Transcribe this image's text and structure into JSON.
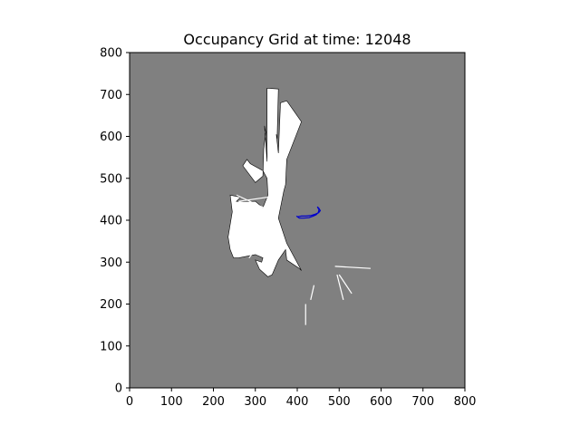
{
  "figure": {
    "title": "Occupancy Grid at time: 12048"
  },
  "chart_data": {
    "type": "heatmap",
    "title": "Occupancy Grid at time: 12048",
    "xlabel": "",
    "ylabel": "",
    "xlim": [
      0,
      800
    ],
    "ylim": [
      0,
      800
    ],
    "x_ticks": [
      0,
      100,
      200,
      300,
      400,
      500,
      600,
      700,
      800
    ],
    "y_ticks": [
      0,
      100,
      200,
      300,
      400,
      500,
      600,
      700,
      800
    ],
    "grid": false,
    "colors": {
      "unknown": "#808080",
      "free": "#ffffff",
      "occupied": "#000000",
      "trajectory": "#0000cc",
      "axis": "#000000"
    },
    "free_region_outline": [
      [
        235,
        360
      ],
      [
        245,
        420
      ],
      [
        240,
        460
      ],
      [
        265,
        455
      ],
      [
        255,
        445
      ],
      [
        300,
        445
      ],
      [
        318,
        430
      ],
      [
        330,
        460
      ],
      [
        328,
        500
      ],
      [
        318,
        518
      ],
      [
        288,
        535
      ],
      [
        280,
        545
      ],
      [
        270,
        530
      ],
      [
        300,
        490
      ],
      [
        318,
        505
      ],
      [
        320,
        570
      ],
      [
        325,
        610
      ],
      [
        322,
        625
      ],
      [
        328,
        540
      ],
      [
        328,
        715
      ],
      [
        355,
        713
      ],
      [
        352,
        595
      ],
      [
        350,
        605
      ],
      [
        355,
        560
      ],
      [
        360,
        680
      ],
      [
        375,
        685
      ],
      [
        410,
        635
      ],
      [
        375,
        545
      ],
      [
        372,
        485
      ],
      [
        368,
        470
      ],
      [
        355,
        405
      ],
      [
        375,
        345
      ],
      [
        410,
        280
      ],
      [
        405,
        285
      ],
      [
        375,
        305
      ],
      [
        372,
        330
      ],
      [
        355,
        305
      ],
      [
        340,
        270
      ],
      [
        330,
        265
      ],
      [
        310,
        283
      ],
      [
        300,
        305
      ],
      [
        315,
        300
      ],
      [
        318,
        310
      ],
      [
        300,
        318
      ],
      [
        260,
        310
      ],
      [
        248,
        310
      ],
      [
        240,
        330
      ]
    ],
    "rays": [
      [
        [
          420,
          200
        ],
        [
          420,
          150
        ]
      ],
      [
        [
          440,
          245
        ],
        [
          432,
          210
        ]
      ],
      [
        [
          495,
          270
        ],
        [
          510,
          210
        ]
      ],
      [
        [
          500,
          270
        ],
        [
          530,
          225
        ]
      ],
      [
        [
          490,
          290
        ],
        [
          575,
          285
        ]
      ],
      [
        [
          300,
          330
        ],
        [
          285,
          310
        ]
      ],
      [
        [
          255,
          460
        ],
        [
          320,
          430
        ]
      ],
      [
        [
          260,
          445
        ],
        [
          330,
          455
        ]
      ]
    ],
    "trajectory": [
      [
        398,
        410
      ],
      [
        405,
        405
      ],
      [
        415,
        405
      ],
      [
        428,
        406
      ],
      [
        438,
        410
      ],
      [
        445,
        413
      ],
      [
        450,
        418
      ],
      [
        452,
        425
      ],
      [
        448,
        432
      ],
      [
        452,
        428
      ],
      [
        455,
        423
      ],
      [
        451,
        418
      ],
      [
        442,
        414
      ],
      [
        432,
        411
      ],
      [
        420,
        410
      ],
      [
        410,
        410
      ],
      [
        400,
        408
      ]
    ]
  }
}
